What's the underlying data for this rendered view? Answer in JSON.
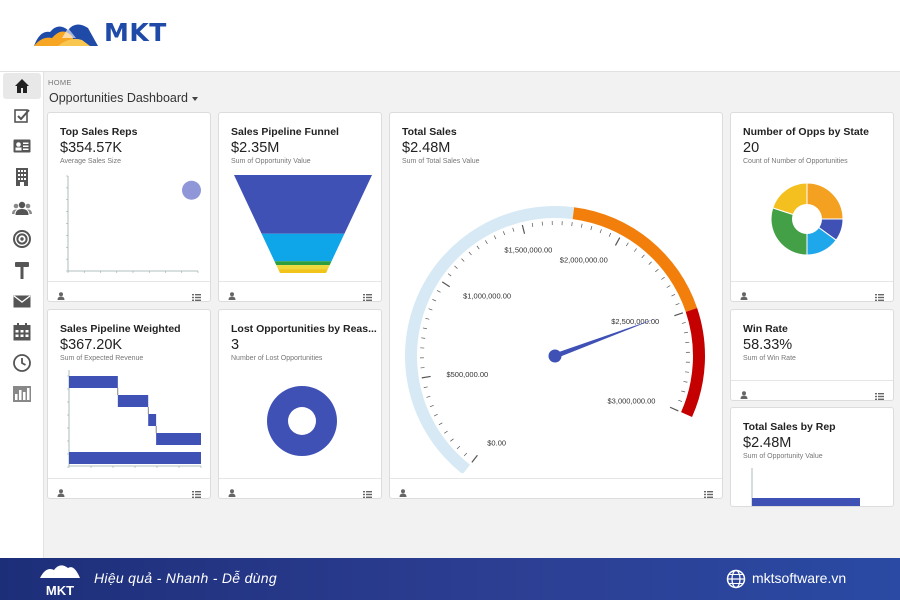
{
  "brand": {
    "logo_text": "MKT"
  },
  "breadcrumb": "HOME",
  "page_title": "Opportunities Dashboard",
  "sidebar": {
    "items": [
      {
        "icon": "home-icon"
      },
      {
        "icon": "tasks-icon"
      },
      {
        "icon": "contact-card-icon"
      },
      {
        "icon": "building-icon"
      },
      {
        "icon": "users-icon"
      },
      {
        "icon": "target-icon"
      },
      {
        "icon": "hammer-icon"
      },
      {
        "icon": "mail-icon"
      },
      {
        "icon": "calendar-icon"
      },
      {
        "icon": "clock-icon"
      },
      {
        "icon": "bar-chart-icon"
      }
    ]
  },
  "cards": {
    "top_reps": {
      "title": "Top Sales Reps",
      "value": "$354.57K",
      "sub": "Average Sales Size"
    },
    "funnel": {
      "title": "Sales Pipeline Funnel",
      "value": "$2.35M",
      "sub": "Sum of Opportunity Value"
    },
    "total_sales": {
      "title": "Total Sales",
      "value": "$2.48M",
      "sub": "Sum of Total Sales Value"
    },
    "opps_state": {
      "title": "Number of Opps by State",
      "value": "20",
      "sub": "Count of Number of Opportunities"
    },
    "weighted": {
      "title": "Sales Pipeline Weighted",
      "value": "$367.20K",
      "sub": "Sum of Expected Revenue"
    },
    "lost": {
      "title": "Lost Opportunities by Reas...",
      "value": "3",
      "sub": "Number of Lost Opportunities"
    },
    "win_rate": {
      "title": "Win Rate",
      "value": "58.33%",
      "sub": "Sum of Win Rate"
    },
    "sales_by_rep": {
      "title": "Total Sales by Rep",
      "value": "$2.48M",
      "sub": "Sum of Opportunity Value"
    }
  },
  "chart_data": [
    {
      "type": "gauge",
      "title": "Total Sales",
      "range": [
        0,
        3000000
      ],
      "value": 2480000,
      "tick_labels": [
        "$0.00",
        "$500,000.00",
        "$1,000,000.00",
        "$1,500,000.00",
        "$2,000,000.00",
        "$2,500,000.00",
        "$3,000,000.00"
      ],
      "bands": [
        {
          "from": 0,
          "to": 1750000,
          "color": "#d6e9f4"
        },
        {
          "from": 1750000,
          "to": 2500000,
          "color": "#f27f0c"
        },
        {
          "from": 2500000,
          "to": 3000000,
          "color": "#c40000"
        }
      ]
    },
    {
      "type": "funnel",
      "title": "Sales Pipeline Funnel",
      "stages": [
        {
          "share": 0.6,
          "color": "#3f51b5"
        },
        {
          "share": 0.28,
          "color": "#0ea5e9"
        },
        {
          "share": 0.04,
          "color": "#2e9e3e"
        },
        {
          "share": 0.04,
          "color": "#f0d83a"
        },
        {
          "share": 0.04,
          "color": "#f0c419"
        }
      ]
    },
    {
      "type": "pie",
      "title": "Number of Opps by State",
      "donut": true,
      "slices": [
        {
          "value": 5,
          "color": "#f4a020"
        },
        {
          "value": 2,
          "color": "#3f51b5"
        },
        {
          "value": 3,
          "color": "#1ea7ea"
        },
        {
          "value": 6,
          "color": "#43a047"
        },
        {
          "value": 4,
          "color": "#f4c020"
        }
      ]
    },
    {
      "type": "pie",
      "title": "Lost Opportunities by Reas...",
      "donut": true,
      "slices": [
        {
          "value": 3,
          "color": "#3f51b5"
        }
      ]
    },
    {
      "type": "scatter",
      "title": "Top Sales Reps",
      "points": [
        {
          "x": 0.95,
          "y": 0.85,
          "color": "#8f97d8"
        }
      ]
    },
    {
      "type": "waterfall",
      "title": "Sales Pipeline Weighted",
      "color": "#3f51b5",
      "steps": [
        {
          "start": 0.0,
          "end": 0.37
        },
        {
          "start": 0.37,
          "end": 0.6
        },
        {
          "start": 0.6,
          "end": 0.66
        },
        {
          "start": 0.66,
          "end": 1.0
        },
        {
          "start": 0.0,
          "end": 1.0
        }
      ]
    },
    {
      "type": "bar",
      "title": "Total Sales by Rep",
      "color": "#3f51b5",
      "values": [
        1.0
      ]
    }
  ],
  "footer": {
    "slogan": "Hiệu quả - Nhanh - Dễ dùng",
    "website": "mktsoftware.vn",
    "logo_text": "MKT"
  }
}
